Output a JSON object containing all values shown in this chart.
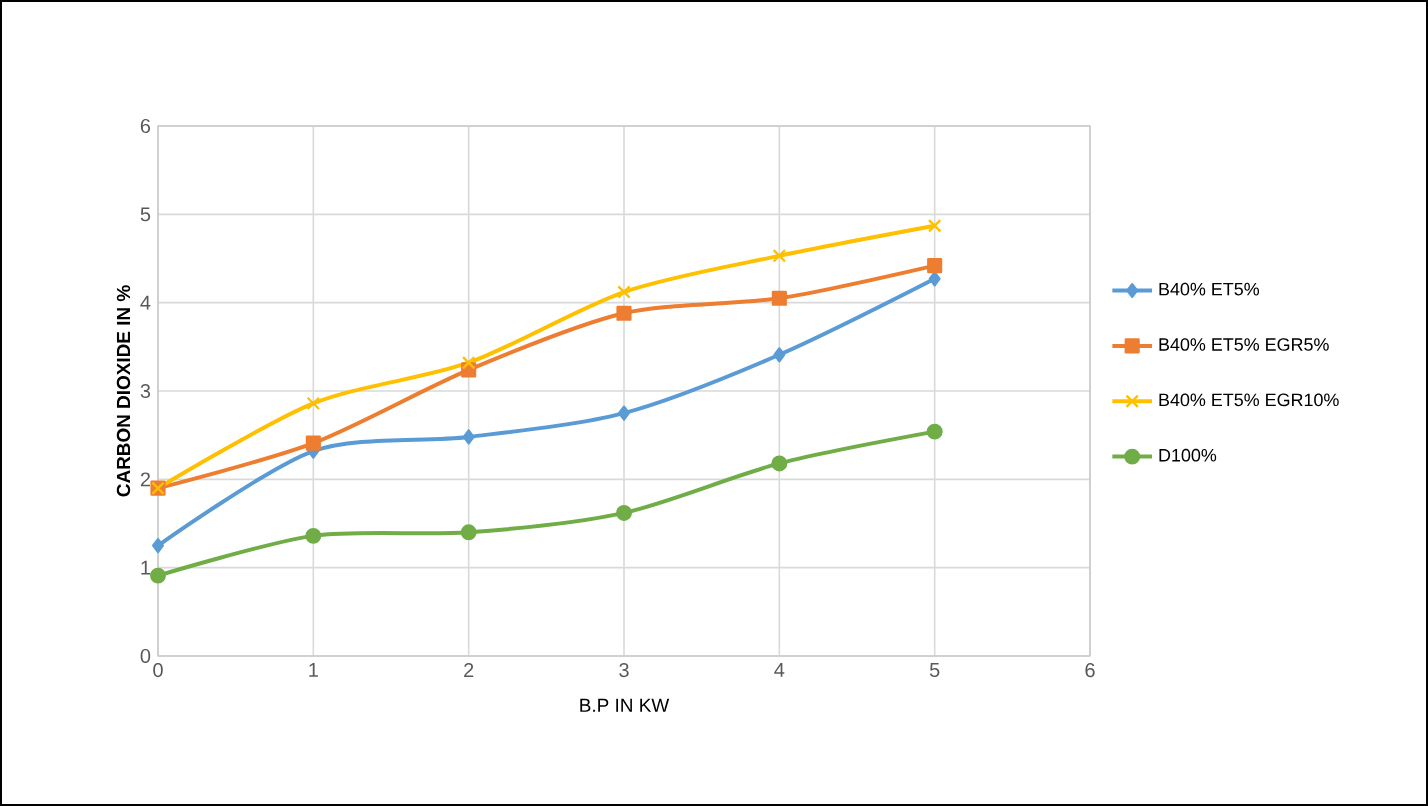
{
  "chart_data": {
    "type": "line",
    "xlabel": "B.P IN KW",
    "ylabel": "CARBON DIOXIDE IN %",
    "x": [
      0,
      1,
      2,
      3,
      4,
      5
    ],
    "series": [
      {
        "name": "B40% ET5%",
        "color": "#5b9bd5",
        "marker": "diamond",
        "values": [
          1.25,
          2.32,
          2.48,
          2.75,
          3.41,
          4.27
        ]
      },
      {
        "name": "B40% ET5% EGR5%",
        "color": "#ed7d31",
        "marker": "square",
        "values": [
          1.9,
          2.41,
          3.24,
          3.88,
          4.05,
          4.42
        ]
      },
      {
        "name": "B40% ET5% EGR10%",
        "color": "#ffc000",
        "marker": "cross",
        "values": [
          1.9,
          2.86,
          3.32,
          4.12,
          4.53,
          4.87
        ]
      },
      {
        "name": "D100%",
        "color": "#70ad47",
        "marker": "circle",
        "values": [
          0.91,
          1.36,
          1.4,
          1.62,
          2.18,
          2.54
        ]
      }
    ],
    "xlim": [
      0,
      6
    ],
    "ylim": [
      0,
      6
    ],
    "xticks": [
      0,
      1,
      2,
      3,
      4,
      5,
      6
    ],
    "yticks": [
      0,
      1,
      2,
      3,
      4,
      5,
      6
    ],
    "grid": true,
    "legend": "right"
  }
}
